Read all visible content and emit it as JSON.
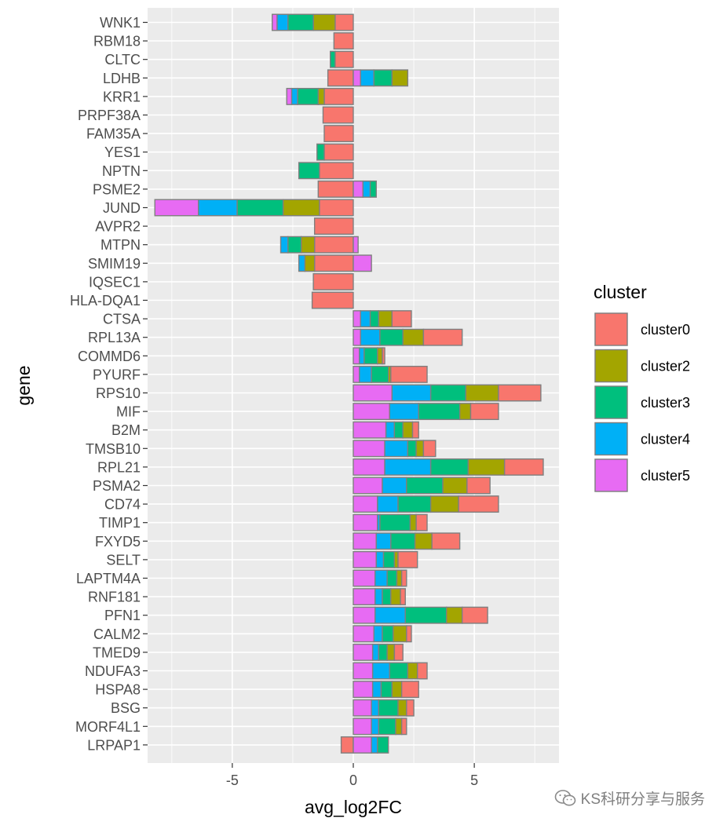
{
  "chart_data": {
    "type": "bar",
    "orientation": "horizontal",
    "stacked": true,
    "xlabel": "avg_log2FC",
    "ylabel": "gene",
    "xlim": [
      -8.5,
      8.5
    ],
    "x_ticks": [
      -5,
      0,
      5
    ],
    "x_tick_labels": [
      "-5",
      "0",
      "5"
    ],
    "grid": true,
    "legend_position": "right",
    "legend_title": "cluster",
    "colors": {
      "cluster0": "#F8766D",
      "cluster2": "#A3A500",
      "cluster3": "#00BF7D",
      "cluster4": "#00B0F6",
      "cluster5": "#E76BF3"
    },
    "series": [
      {
        "name": "cluster0"
      },
      {
        "name": "cluster2"
      },
      {
        "name": "cluster3"
      },
      {
        "name": "cluster4"
      },
      {
        "name": "cluster5"
      }
    ],
    "categories": [
      "WNK1",
      "RBM18",
      "CLTC",
      "LDHB",
      "KRR1",
      "PRPF38A",
      "FAM35A",
      "YES1",
      "NPTN",
      "PSME2",
      "JUND",
      "AVPR2",
      "MTPN",
      "SMIM19",
      "IQSEC1",
      "HLA-DQA1",
      "CTSA",
      "RPL13A",
      "COMMD6",
      "PYURF",
      "RPS10",
      "MIF",
      "B2M",
      "TMSB10",
      "RPL21",
      "PSMA2",
      "CD74",
      "TIMP1",
      "FXYD5",
      "SELT",
      "LAPTM4A",
      "RNF181",
      "PFN1",
      "CALM2",
      "TMED9",
      "NDUFA3",
      "HSPA8",
      "BSG",
      "MORF4L1",
      "LRPAP1"
    ],
    "bars": [
      {
        "gene": "WNK1",
        "segments": [
          [
            "cluster0",
            -0.75
          ],
          [
            "cluster2",
            -0.9
          ],
          [
            "cluster3",
            -1.05
          ],
          [
            "cluster4",
            -0.45
          ],
          [
            "cluster5",
            -0.2
          ]
        ]
      },
      {
        "gene": "RBM18",
        "segments": [
          [
            "cluster0",
            -0.8
          ]
        ]
      },
      {
        "gene": "CLTC",
        "segments": [
          [
            "cluster0",
            -0.75
          ],
          [
            "cluster3",
            -0.2
          ]
        ]
      },
      {
        "gene": "LDHB",
        "segments": [
          [
            "cluster0",
            -1.05
          ],
          [
            "cluster5",
            0.3
          ],
          [
            "cluster4",
            0.55
          ],
          [
            "cluster3",
            0.75
          ],
          [
            "cluster2",
            0.65
          ]
        ]
      },
      {
        "gene": "KRR1",
        "segments": [
          [
            "cluster0",
            -1.2
          ],
          [
            "cluster2",
            -0.25
          ],
          [
            "cluster3",
            -0.85
          ],
          [
            "cluster4",
            -0.25
          ],
          [
            "cluster5",
            -0.2
          ]
        ]
      },
      {
        "gene": "PRPF38A",
        "segments": [
          [
            "cluster0",
            -1.25
          ]
        ]
      },
      {
        "gene": "FAM35A",
        "segments": [
          [
            "cluster0",
            -1.2
          ]
        ]
      },
      {
        "gene": "YES1",
        "segments": [
          [
            "cluster0",
            -1.2
          ],
          [
            "cluster3",
            -0.3
          ]
        ]
      },
      {
        "gene": "NPTN",
        "segments": [
          [
            "cluster0",
            -1.4
          ],
          [
            "cluster3",
            -0.85
          ]
        ]
      },
      {
        "gene": "PSME2",
        "segments": [
          [
            "cluster0",
            -1.45
          ],
          [
            "cluster5",
            0.4
          ],
          [
            "cluster4",
            0.3
          ],
          [
            "cluster3",
            0.25
          ]
        ]
      },
      {
        "gene": "JUND",
        "segments": [
          [
            "cluster0",
            -1.4
          ],
          [
            "cluster2",
            -1.5
          ],
          [
            "cluster3",
            -1.9
          ],
          [
            "cluster4",
            -1.6
          ],
          [
            "cluster5",
            -1.8
          ]
        ]
      },
      {
        "gene": "AVPR2",
        "segments": [
          [
            "cluster0",
            -1.6
          ]
        ]
      },
      {
        "gene": "MTPN",
        "segments": [
          [
            "cluster0",
            -1.6
          ],
          [
            "cluster2",
            -0.55
          ],
          [
            "cluster3",
            -0.55
          ],
          [
            "cluster4",
            -0.3
          ],
          [
            "cluster5",
            0.2
          ]
        ]
      },
      {
        "gene": "SMIM19",
        "segments": [
          [
            "cluster0",
            -1.6
          ],
          [
            "cluster2",
            -0.4
          ],
          [
            "cluster4",
            -0.25
          ],
          [
            "cluster5",
            0.75
          ]
        ]
      },
      {
        "gene": "IQSEC1",
        "segments": [
          [
            "cluster0",
            -1.65
          ]
        ]
      },
      {
        "gene": "HLA-DQA1",
        "segments": [
          [
            "cluster0",
            -1.7
          ]
        ]
      },
      {
        "gene": "CTSA",
        "segments": [
          [
            "cluster5",
            0.3
          ],
          [
            "cluster4",
            0.4
          ],
          [
            "cluster3",
            0.35
          ],
          [
            "cluster2",
            0.55
          ],
          [
            "cluster0",
            0.8
          ]
        ]
      },
      {
        "gene": "RPL13A",
        "segments": [
          [
            "cluster5",
            0.3
          ],
          [
            "cluster4",
            0.8
          ],
          [
            "cluster3",
            0.95
          ],
          [
            "cluster2",
            0.85
          ],
          [
            "cluster0",
            1.6
          ]
        ]
      },
      {
        "gene": "COMMD6",
        "segments": [
          [
            "cluster5",
            0.25
          ],
          [
            "cluster4",
            0.2
          ],
          [
            "cluster3",
            0.55
          ],
          [
            "cluster2",
            0.2
          ],
          [
            "cluster0",
            0.1
          ]
        ]
      },
      {
        "gene": "PYURF",
        "segments": [
          [
            "cluster5",
            0.25
          ],
          [
            "cluster4",
            0.5
          ],
          [
            "cluster3",
            0.7
          ],
          [
            "cluster2",
            0.1
          ],
          [
            "cluster0",
            1.5
          ]
        ]
      },
      {
        "gene": "RPS10",
        "segments": [
          [
            "cluster5",
            1.6
          ],
          [
            "cluster4",
            1.6
          ],
          [
            "cluster3",
            1.45
          ],
          [
            "cluster2",
            1.35
          ],
          [
            "cluster0",
            1.75
          ]
        ]
      },
      {
        "gene": "MIF",
        "segments": [
          [
            "cluster5",
            1.5
          ],
          [
            "cluster4",
            1.2
          ],
          [
            "cluster3",
            1.7
          ],
          [
            "cluster2",
            0.45
          ],
          [
            "cluster0",
            1.15
          ]
        ]
      },
      {
        "gene": "B2M",
        "segments": [
          [
            "cluster5",
            1.35
          ],
          [
            "cluster4",
            0.35
          ],
          [
            "cluster3",
            0.35
          ],
          [
            "cluster2",
            0.4
          ],
          [
            "cluster0",
            0.25
          ]
        ]
      },
      {
        "gene": "TMSB10",
        "segments": [
          [
            "cluster5",
            1.3
          ],
          [
            "cluster4",
            0.95
          ],
          [
            "cluster3",
            0.35
          ],
          [
            "cluster2",
            0.3
          ],
          [
            "cluster0",
            0.5
          ]
        ]
      },
      {
        "gene": "RPL21",
        "segments": [
          [
            "cluster5",
            1.3
          ],
          [
            "cluster4",
            1.9
          ],
          [
            "cluster3",
            1.55
          ],
          [
            "cluster2",
            1.5
          ],
          [
            "cluster0",
            1.6
          ]
        ]
      },
      {
        "gene": "PSMA2",
        "segments": [
          [
            "cluster5",
            1.2
          ],
          [
            "cluster4",
            1.0
          ],
          [
            "cluster3",
            1.5
          ],
          [
            "cluster2",
            1.0
          ],
          [
            "cluster0",
            0.95
          ]
        ]
      },
      {
        "gene": "CD74",
        "segments": [
          [
            "cluster5",
            1.0
          ],
          [
            "cluster4",
            0.85
          ],
          [
            "cluster3",
            1.35
          ],
          [
            "cluster2",
            1.15
          ],
          [
            "cluster0",
            1.65
          ]
        ]
      },
      {
        "gene": "TIMP1",
        "segments": [
          [
            "cluster5",
            1.0
          ],
          [
            "cluster4",
            0.1
          ],
          [
            "cluster3",
            1.25
          ],
          [
            "cluster2",
            0.25
          ],
          [
            "cluster0",
            0.45
          ]
        ]
      },
      {
        "gene": "FXYD5",
        "segments": [
          [
            "cluster5",
            0.95
          ],
          [
            "cluster4",
            0.6
          ],
          [
            "cluster3",
            1.0
          ],
          [
            "cluster2",
            0.7
          ],
          [
            "cluster0",
            1.15
          ]
        ]
      },
      {
        "gene": "SELT",
        "segments": [
          [
            "cluster5",
            0.95
          ],
          [
            "cluster4",
            0.3
          ],
          [
            "cluster3",
            0.45
          ],
          [
            "cluster2",
            0.15
          ],
          [
            "cluster0",
            0.8
          ]
        ]
      },
      {
        "gene": "LAPTM4A",
        "segments": [
          [
            "cluster5",
            0.9
          ],
          [
            "cluster4",
            0.5
          ],
          [
            "cluster3",
            0.4
          ],
          [
            "cluster2",
            0.2
          ],
          [
            "cluster0",
            0.2
          ]
        ]
      },
      {
        "gene": "RNF181",
        "segments": [
          [
            "cluster5",
            0.9
          ],
          [
            "cluster4",
            0.3
          ],
          [
            "cluster3",
            0.35
          ],
          [
            "cluster2",
            0.4
          ],
          [
            "cluster0",
            0.2
          ]
        ]
      },
      {
        "gene": "PFN1",
        "segments": [
          [
            "cluster5",
            0.9
          ],
          [
            "cluster4",
            1.25
          ],
          [
            "cluster3",
            1.7
          ],
          [
            "cluster2",
            0.65
          ],
          [
            "cluster0",
            1.05
          ]
        ]
      },
      {
        "gene": "CALM2",
        "segments": [
          [
            "cluster5",
            0.85
          ],
          [
            "cluster4",
            0.35
          ],
          [
            "cluster3",
            0.45
          ],
          [
            "cluster2",
            0.55
          ],
          [
            "cluster0",
            0.2
          ]
        ]
      },
      {
        "gene": "TMED9",
        "segments": [
          [
            "cluster5",
            0.8
          ],
          [
            "cluster4",
            0.25
          ],
          [
            "cluster3",
            0.35
          ],
          [
            "cluster2",
            0.3
          ],
          [
            "cluster0",
            0.35
          ]
        ]
      },
      {
        "gene": "NDUFA3",
        "segments": [
          [
            "cluster5",
            0.8
          ],
          [
            "cluster4",
            0.7
          ],
          [
            "cluster3",
            0.75
          ],
          [
            "cluster2",
            0.4
          ],
          [
            "cluster0",
            0.4
          ]
        ]
      },
      {
        "gene": "HSPA8",
        "segments": [
          [
            "cluster5",
            0.8
          ],
          [
            "cluster4",
            0.35
          ],
          [
            "cluster3",
            0.45
          ],
          [
            "cluster2",
            0.4
          ],
          [
            "cluster0",
            0.7
          ]
        ]
      },
      {
        "gene": "BSG",
        "segments": [
          [
            "cluster5",
            0.75
          ],
          [
            "cluster4",
            0.3
          ],
          [
            "cluster3",
            0.8
          ],
          [
            "cluster2",
            0.35
          ],
          [
            "cluster0",
            0.3
          ]
        ]
      },
      {
        "gene": "MORF4L1",
        "segments": [
          [
            "cluster5",
            0.75
          ],
          [
            "cluster4",
            0.3
          ],
          [
            "cluster3",
            0.7
          ],
          [
            "cluster2",
            0.25
          ],
          [
            "cluster0",
            0.2
          ]
        ]
      },
      {
        "gene": "LRPAP1",
        "segments": [
          [
            "cluster0",
            -0.5
          ],
          [
            "cluster5",
            0.75
          ],
          [
            "cluster4",
            0.25
          ],
          [
            "cluster3",
            0.45
          ]
        ]
      }
    ]
  },
  "watermark": {
    "text": "KS科研分享与服务",
    "icon": "chat-bubble-icon"
  }
}
